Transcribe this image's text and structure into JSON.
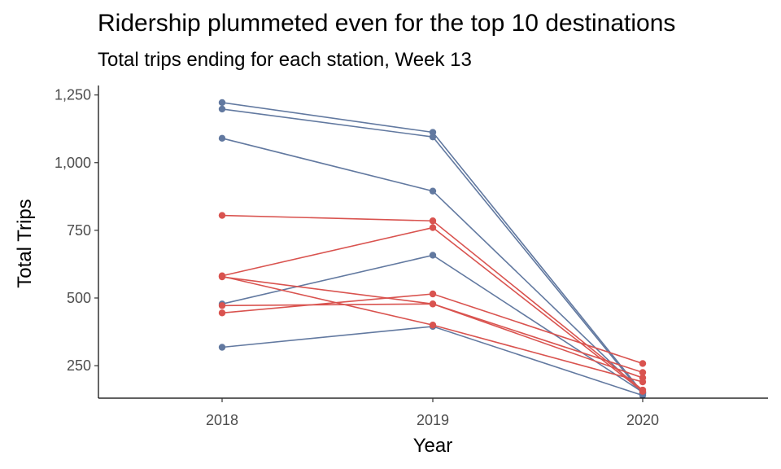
{
  "chart_data": {
    "type": "line",
    "title": "Ridership plummeted even for the top 10 destinations",
    "subtitle": "Total trips ending for each station, Week 13",
    "xlabel": "Year",
    "ylabel": "Total Trips",
    "x": [
      "2018",
      "2019",
      "2020"
    ],
    "y_ticks": [
      250,
      500,
      750,
      1000,
      1250
    ],
    "y_tick_labels": [
      "250",
      "500",
      "750",
      "1,000",
      "1,250"
    ],
    "ylim": [
      130,
      1285
    ],
    "grid": false,
    "legend": "none",
    "colors": {
      "blue": "#6279A0",
      "red": "#D9534F"
    },
    "series": [
      {
        "color": "blue",
        "values": [
          1222,
          1112,
          150
        ]
      },
      {
        "color": "blue",
        "values": [
          1198,
          1095,
          145
        ]
      },
      {
        "color": "blue",
        "values": [
          1090,
          895,
          148
        ]
      },
      {
        "color": "blue",
        "values": [
          478,
          658,
          152
        ]
      },
      {
        "color": "blue",
        "values": [
          318,
          395,
          140
        ]
      },
      {
        "color": "red",
        "values": [
          805,
          785,
          160
        ]
      },
      {
        "color": "red",
        "values": [
          582,
          760,
          155
        ]
      },
      {
        "color": "red",
        "values": [
          578,
          478,
          225
        ]
      },
      {
        "color": "red",
        "values": [
          472,
          478,
          205
        ]
      },
      {
        "color": "red",
        "values": [
          445,
          515,
          258
        ]
      },
      {
        "color": "red",
        "values": [
          580,
          400,
          190
        ]
      }
    ]
  }
}
